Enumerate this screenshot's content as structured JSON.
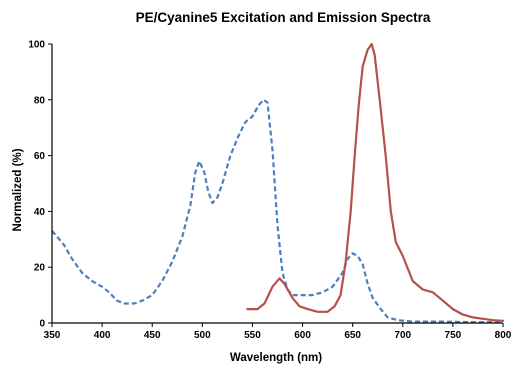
{
  "chart_data": {
    "type": "line",
    "title": "PE/Cyanine5 Excitation and Emission Spectra",
    "xlabel": "Wavelength (nm)",
    "ylabel": "Normalized (%)",
    "xlim": [
      350,
      800
    ],
    "ylim": [
      0,
      100
    ],
    "xticks": [
      350,
      400,
      450,
      500,
      550,
      600,
      650,
      700,
      750,
      800
    ],
    "yticks": [
      0,
      20,
      40,
      60,
      80,
      100
    ],
    "grid": false,
    "legend": "none",
    "series": [
      {
        "style": "dashed",
        "color": "#4a7fc1",
        "points": [
          [
            350,
            33
          ],
          [
            355,
            31
          ],
          [
            362,
            28
          ],
          [
            370,
            23
          ],
          [
            380,
            18
          ],
          [
            390,
            15
          ],
          [
            400,
            13
          ],
          [
            407,
            11
          ],
          [
            415,
            8
          ],
          [
            422,
            7
          ],
          [
            432,
            7
          ],
          [
            440,
            8
          ],
          [
            450,
            10
          ],
          [
            460,
            15
          ],
          [
            470,
            22
          ],
          [
            480,
            31
          ],
          [
            488,
            42
          ],
          [
            493,
            54
          ],
          [
            497,
            58
          ],
          [
            502,
            54
          ],
          [
            506,
            47
          ],
          [
            510,
            43
          ],
          [
            515,
            45
          ],
          [
            520,
            50
          ],
          [
            528,
            60
          ],
          [
            536,
            67
          ],
          [
            543,
            72
          ],
          [
            550,
            74
          ],
          [
            556,
            78
          ],
          [
            561,
            80
          ],
          [
            565,
            79
          ],
          [
            570,
            62
          ],
          [
            575,
            35
          ],
          [
            580,
            18
          ],
          [
            585,
            12
          ],
          [
            590,
            10
          ],
          [
            600,
            10
          ],
          [
            610,
            10
          ],
          [
            620,
            11
          ],
          [
            630,
            13
          ],
          [
            640,
            18
          ],
          [
            645,
            23
          ],
          [
            650,
            25
          ],
          [
            655,
            24
          ],
          [
            660,
            21
          ],
          [
            665,
            14
          ],
          [
            670,
            9
          ],
          [
            678,
            5
          ],
          [
            685,
            2
          ],
          [
            695,
            1
          ],
          [
            710,
            0.5
          ],
          [
            740,
            0.5
          ],
          [
            770,
            0.3
          ],
          [
            800,
            0.3
          ]
        ]
      },
      {
        "style": "solid",
        "color": "#b5504a",
        "points": [
          [
            545,
            5
          ],
          [
            555,
            5
          ],
          [
            562,
            7
          ],
          [
            570,
            13
          ],
          [
            577,
            16
          ],
          [
            582,
            14
          ],
          [
            590,
            9
          ],
          [
            597,
            6
          ],
          [
            605,
            5
          ],
          [
            615,
            4
          ],
          [
            625,
            4
          ],
          [
            632,
            6
          ],
          [
            638,
            10
          ],
          [
            643,
            22
          ],
          [
            648,
            40
          ],
          [
            652,
            60
          ],
          [
            656,
            78
          ],
          [
            660,
            92
          ],
          [
            665,
            98
          ],
          [
            669,
            100
          ],
          [
            672,
            96
          ],
          [
            677,
            80
          ],
          [
            683,
            60
          ],
          [
            688,
            40
          ],
          [
            693,
            29
          ],
          [
            700,
            24
          ],
          [
            710,
            15
          ],
          [
            720,
            12
          ],
          [
            730,
            11
          ],
          [
            740,
            8
          ],
          [
            750,
            5
          ],
          [
            760,
            3
          ],
          [
            770,
            2
          ],
          [
            780,
            1.5
          ],
          [
            790,
            1
          ],
          [
            800,
            0.8
          ]
        ]
      }
    ]
  }
}
